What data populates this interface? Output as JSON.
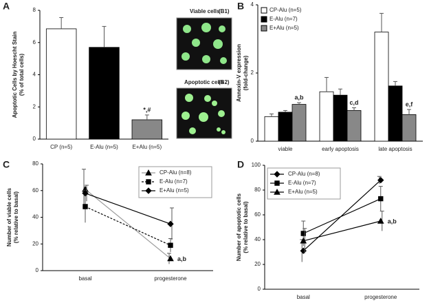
{
  "chart_data": [
    {
      "type": "bar",
      "panel": "A",
      "ylabel": [
        "Apoptotic Cells by Hoescht Stain",
        "(% of total cells)"
      ],
      "categories": [
        "CP (n=5)",
        "E-Alu (n=5)",
        "E+Alu (n=5)"
      ],
      "values": [
        6.85,
        5.7,
        1.2
      ],
      "errors": [
        0.7,
        1.3,
        0.3
      ],
      "colors": [
        "#ffffff",
        "#000000",
        "#888888"
      ],
      "annotations": [
        null,
        null,
        "*,#"
      ],
      "ylim": [
        0,
        8
      ],
      "yticks": [
        0,
        2,
        4,
        6,
        8
      ]
    },
    {
      "type": "bar",
      "panel": "B",
      "ylabel": [
        "Annexin-V expression",
        "(fold-change)"
      ],
      "categories": [
        "viable",
        "early apoptosis",
        "late apoptosis"
      ],
      "series": [
        {
          "name": "CP-Alu (n=5)",
          "color": "#ffffff",
          "values": [
            0.72,
            1.45,
            3.2
          ],
          "errors": [
            0.08,
            0.42,
            0.55
          ]
        },
        {
          "name": "E-Alu (n=7)",
          "color": "#000000",
          "values": [
            0.85,
            1.35,
            1.62
          ],
          "errors": [
            0.05,
            0.18,
            0.13
          ]
        },
        {
          "name": "E+Alu (n=5)",
          "color": "#888888",
          "values": [
            1.08,
            0.9,
            0.78
          ],
          "errors": [
            0.05,
            0.08,
            0.15
          ],
          "annotations": [
            "a,b",
            "c,d",
            "e,f"
          ]
        }
      ],
      "legend": "upper left",
      "ylim": [
        0,
        4
      ],
      "yticks": [
        0,
        2,
        4
      ]
    },
    {
      "type": "line",
      "panel": "C",
      "ylabel": [
        "Number of viable cells",
        "(% relative to basal)"
      ],
      "categories": [
        "basal",
        "progesterone"
      ],
      "series": [
        {
          "name": "CP-Alu (n=8)",
          "color": "#999999",
          "marker": "triangle",
          "values": [
            61,
            9
          ],
          "errors": [
            15,
            4
          ],
          "annotations": [
            null,
            "a,b"
          ]
        },
        {
          "name": "E-Alu (n=7)",
          "color": "#000000",
          "marker": "square",
          "dash": true,
          "values": [
            48,
            19
          ],
          "errors": [
            12,
            5
          ]
        },
        {
          "name": "E+Alu (n=5)",
          "color": "#000000",
          "marker": "diamond",
          "values": [
            58,
            35
          ],
          "errors": [
            6,
            12
          ]
        }
      ],
      "legend": "upper right",
      "ylim": [
        0,
        80
      ],
      "yticks": [
        0,
        20,
        40,
        60,
        80
      ]
    },
    {
      "type": "line",
      "panel": "D",
      "ylabel": [
        "Number of apoptotic cells",
        "(% relative to basal)"
      ],
      "categories": [
        "basal",
        "progesterone"
      ],
      "series": [
        {
          "name": "CP-Alu (n=8)",
          "color": "#000000",
          "marker": "diamond",
          "values": [
            31,
            88
          ],
          "errors": [
            9,
            3
          ]
        },
        {
          "name": "E-Alu (n=7)",
          "color": "#000000",
          "marker": "square",
          "values": [
            45,
            73
          ],
          "errors": [
            10,
            10
          ]
        },
        {
          "name": "E+Alu (n=5)",
          "color": "#000000",
          "marker": "triangle",
          "values": [
            39,
            55
          ],
          "errors": [
            10,
            8
          ],
          "annotations": [
            null,
            "a,b"
          ]
        }
      ],
      "legend": "upper left",
      "ylim": [
        0,
        100
      ],
      "yticks": [
        0,
        20,
        40,
        60,
        80,
        100
      ]
    }
  ],
  "images": [
    {
      "caption": "Viable cells",
      "tag": "(B1)"
    },
    {
      "caption": "Apoptotic cells",
      "tag": "(B2)"
    }
  ]
}
